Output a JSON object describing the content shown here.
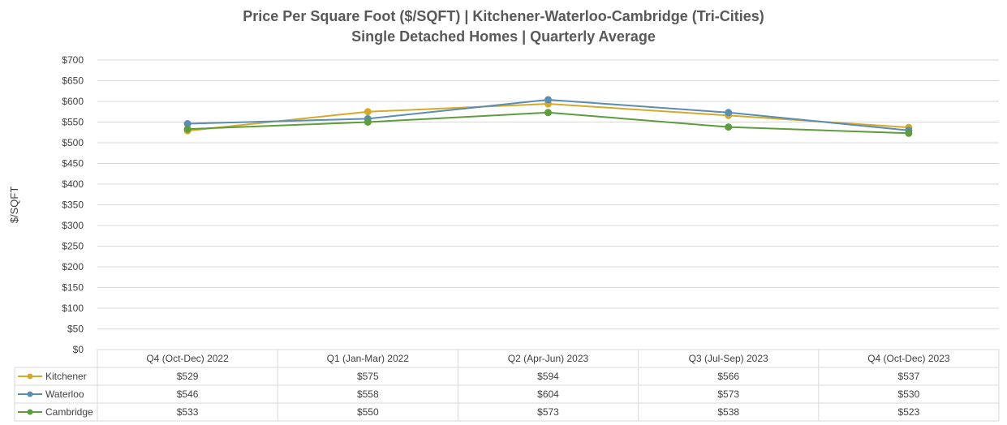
{
  "chart_data": {
    "type": "line",
    "title": [
      "Price Per Square Foot ($/SQFT) | Kitchener-Waterloo-Cambridge (Tri-Cities)",
      "Single Detached Homes | Quarterly Average"
    ],
    "ylabel": "$/SQFT",
    "ylim": [
      0,
      700
    ],
    "yticks": [
      0,
      50,
      100,
      150,
      200,
      250,
      300,
      350,
      400,
      450,
      500,
      550,
      600,
      650,
      700
    ],
    "ytick_labels": [
      "$0",
      "$50",
      "$100",
      "$150",
      "$200",
      "$250",
      "$300",
      "$350",
      "$400",
      "$450",
      "$500",
      "$550",
      "$600",
      "$650",
      "$700"
    ],
    "categories": [
      "Q4 (Oct-Dec) 2022",
      "Q1 (Jan-Mar) 2022",
      "Q2 (Apr-Jun) 2023",
      "Q3 (Jul-Sep) 2023",
      "Q4 (Oct-Dec) 2023"
    ],
    "grid": true,
    "legend": "data-table",
    "series": [
      {
        "name": "Kitchener",
        "color": "#D4A92C",
        "values": [
          529,
          575,
          594,
          566,
          537
        ],
        "labels": [
          "$529",
          "$575",
          "$594",
          "$566",
          "$537"
        ]
      },
      {
        "name": "Waterloo",
        "color": "#5B8DB0",
        "values": [
          546,
          558,
          604,
          573,
          530
        ],
        "labels": [
          "$546",
          "$558",
          "$604",
          "$573",
          "$530"
        ]
      },
      {
        "name": "Cambridge",
        "color": "#5E9C3E",
        "values": [
          533,
          550,
          573,
          538,
          523
        ],
        "labels": [
          "$533",
          "$550",
          "$573",
          "$538",
          "$523"
        ]
      }
    ]
  }
}
